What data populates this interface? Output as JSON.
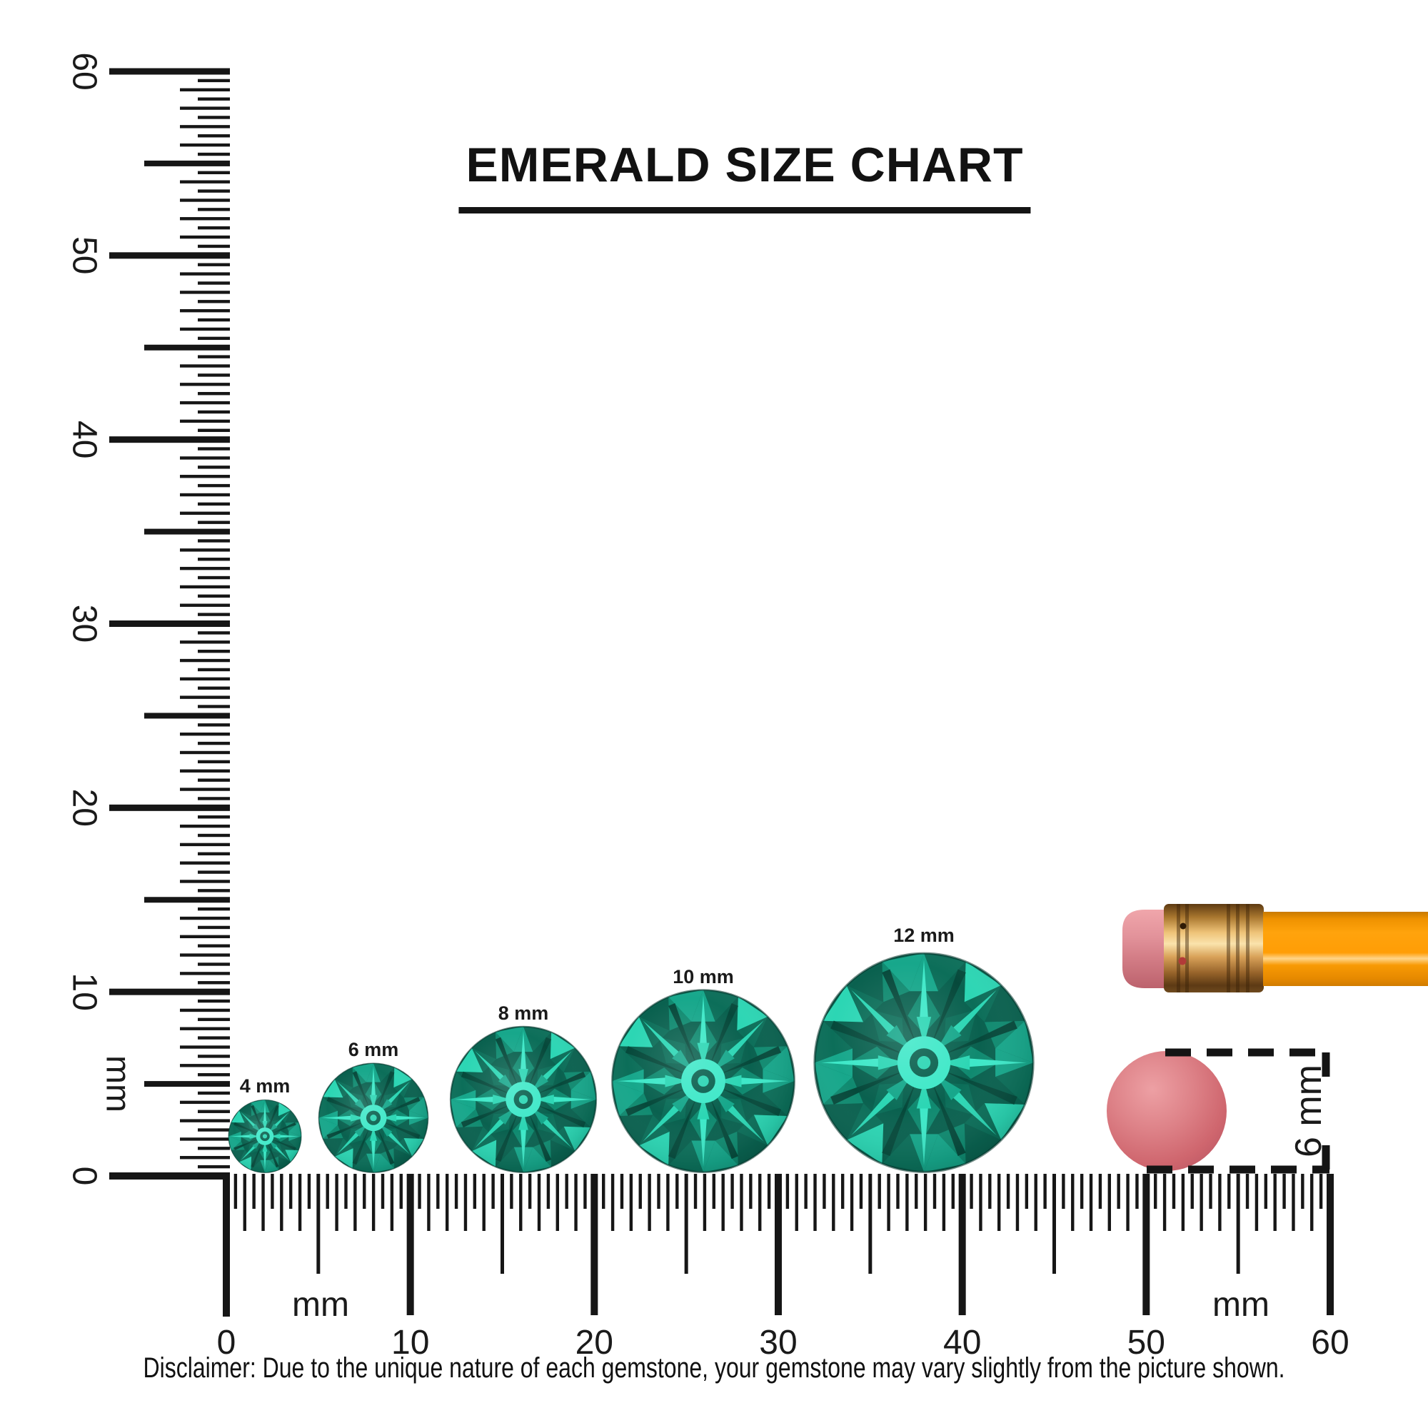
{
  "title": "EMERALD SIZE CHART",
  "disclaimer": "Disclaimer: Due to the unique nature of each gemstone, your gemstone may vary slightly from the picture shown.",
  "chart_data": {
    "type": "table",
    "title": "EMERALD SIZE CHART",
    "unit": "mm",
    "gem_sizes_mm": [
      4,
      6,
      8,
      10,
      12
    ],
    "ruler_range_mm": [
      0,
      60
    ],
    "ruler_major_step_mm": 10,
    "eraser_reference_mm": 6
  },
  "rulers": {
    "vertical": {
      "unit_label": "mm",
      "labels": [
        "60",
        "50",
        "40",
        "30",
        "20",
        "10",
        "0"
      ]
    },
    "horizontal": {
      "unit_label_left": "mm",
      "unit_label_right": "mm",
      "labels": [
        "0",
        "10",
        "20",
        "30",
        "40",
        "50",
        "60"
      ]
    }
  },
  "gems": [
    {
      "label": "4 mm",
      "size_mm": 4
    },
    {
      "label": "6 mm",
      "size_mm": 6
    },
    {
      "label": "8 mm",
      "size_mm": 8
    },
    {
      "label": "10 mm",
      "size_mm": 10
    },
    {
      "label": "12 mm",
      "size_mm": 12
    }
  ],
  "eraser_reference": {
    "label": "6 mm"
  },
  "colors": {
    "ink": "#161616",
    "gem": {
      "bright": "#3EE8C8",
      "light": "#2CD6B4",
      "mid": "#17A78B",
      "teal": "#108A70",
      "dark": "#0C6E59",
      "deep": "#0A614F",
      "edge": "#06493B"
    },
    "pencil": {
      "body": "#FFA30C",
      "body_dark": "#E08800",
      "highlight": "#FFD68C",
      "ferrule_light": "#FAE3AC",
      "ferrule": "#D8A158",
      "ferrule_dark": "#5E3A12",
      "eraser_light": "#F0A6AB",
      "eraser": "#DD868E",
      "eraser_dark": "#BC626D",
      "disc": "#DD8187",
      "disc_dark": "#BF5A66"
    }
  }
}
